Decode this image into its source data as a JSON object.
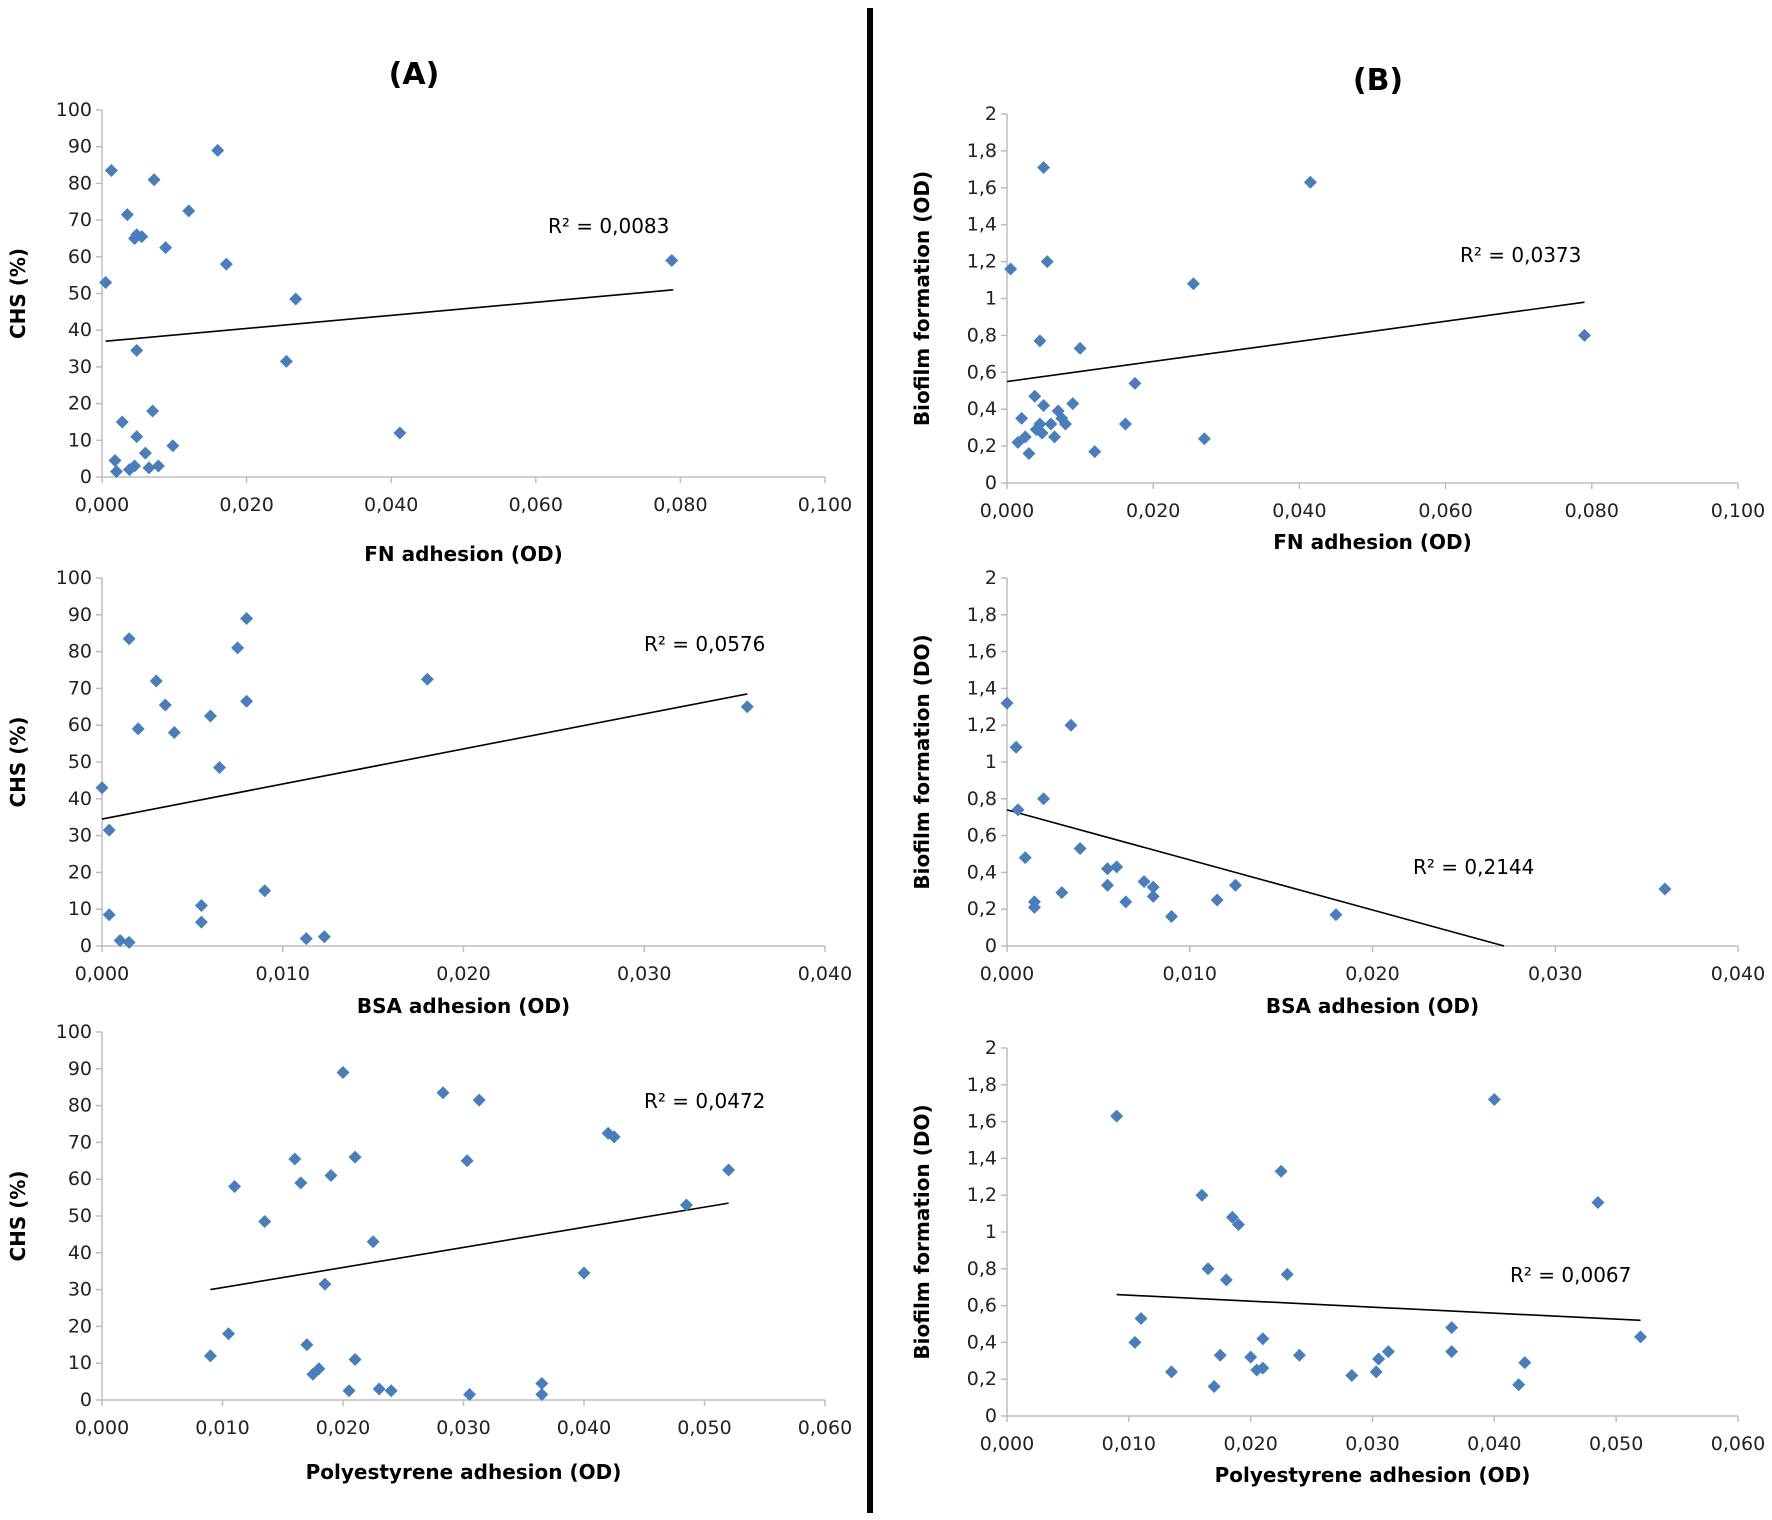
{
  "panel_labels": {
    "a": "(A)",
    "b": "(B)"
  },
  "colors": {
    "point": "#4a7ebb",
    "trendline": "#000000",
    "axis": "#bdbdbd"
  },
  "chart_data": [
    {
      "id": "a1",
      "type": "scatter",
      "xlabel": "FN adhesion (OD)",
      "ylabel": "CHS (%)",
      "xlim": [
        0,
        0.1
      ],
      "ylim": [
        0,
        100
      ],
      "xticks": [
        "0,000",
        "0,020",
        "0,040",
        "0,060",
        "0,080",
        "0,100"
      ],
      "yticks": [
        "0",
        "10",
        "20",
        "30",
        "40",
        "50",
        "60",
        "70",
        "80",
        "90",
        "100"
      ],
      "annotation": "R² = 0,0083",
      "trendline": {
        "x": [
          0.0005,
          0.079
        ],
        "y": [
          37,
          51
        ]
      },
      "points": [
        [
          0.0005,
          53
        ],
        [
          0.0013,
          83.5
        ],
        [
          0.0018,
          4.5
        ],
        [
          0.002,
          1.5
        ],
        [
          0.0028,
          15
        ],
        [
          0.0035,
          71.5
        ],
        [
          0.0038,
          2
        ],
        [
          0.0045,
          3
        ],
        [
          0.0045,
          65
        ],
        [
          0.0048,
          66
        ],
        [
          0.0048,
          34.5
        ],
        [
          0.0048,
          11
        ],
        [
          0.0055,
          65.5
        ],
        [
          0.006,
          6.5
        ],
        [
          0.0065,
          2.5
        ],
        [
          0.007,
          18
        ],
        [
          0.0072,
          81
        ],
        [
          0.0078,
          3
        ],
        [
          0.0088,
          62.5
        ],
        [
          0.0098,
          8.5
        ],
        [
          0.012,
          72.5
        ],
        [
          0.016,
          89
        ],
        [
          0.0172,
          58
        ],
        [
          0.0255,
          31.5
        ],
        [
          0.0268,
          48.5
        ],
        [
          0.0412,
          12
        ],
        [
          0.0788,
          59
        ]
      ]
    },
    {
      "id": "a2",
      "type": "scatter",
      "xlabel": "BSA adhesion (OD)",
      "ylabel": "CHS (%)",
      "xlim": [
        0,
        0.04
      ],
      "ylim": [
        0,
        100
      ],
      "xticks": [
        "0,000",
        "0,010",
        "0,020",
        "0,030",
        "0,040"
      ],
      "yticks": [
        "0",
        "10",
        "20",
        "30",
        "40",
        "50",
        "60",
        "70",
        "80",
        "90",
        "100"
      ],
      "annotation": "R² = 0,0576",
      "trendline": {
        "x": [
          0,
          0.0357
        ],
        "y": [
          34.5,
          68.5
        ]
      },
      "points": [
        [
          0,
          43
        ],
        [
          0.0004,
          31.5
        ],
        [
          0.0004,
          8.5
        ],
        [
          0.001,
          1.5
        ],
        [
          0.0015,
          83.5
        ],
        [
          0.0015,
          1
        ],
        [
          0.002,
          59
        ],
        [
          0.003,
          72
        ],
        [
          0.0035,
          65.5
        ],
        [
          0.004,
          58
        ],
        [
          0.0055,
          11
        ],
        [
          0.0055,
          6.5
        ],
        [
          0.006,
          62.5
        ],
        [
          0.0065,
          48.5
        ],
        [
          0.0075,
          81
        ],
        [
          0.008,
          89
        ],
        [
          0.008,
          66.5
        ],
        [
          0.009,
          15
        ],
        [
          0.0113,
          2
        ],
        [
          0.0123,
          2.5
        ],
        [
          0.018,
          72.5
        ],
        [
          0.0357,
          65
        ]
      ]
    },
    {
      "id": "a3",
      "type": "scatter",
      "xlabel": "Polyestyrene adhesion (OD)",
      "ylabel": "CHS (%)",
      "xlim": [
        0,
        0.06
      ],
      "ylim": [
        0,
        100
      ],
      "xticks": [
        "0,000",
        "0,010",
        "0,020",
        "0,030",
        "0,040",
        "0,050",
        "0,060"
      ],
      "yticks": [
        "0",
        "10",
        "20",
        "30",
        "40",
        "50",
        "60",
        "70",
        "80",
        "90",
        "100"
      ],
      "annotation": "R² = 0,0472",
      "trendline": {
        "x": [
          0.009,
          0.052
        ],
        "y": [
          30,
          53.5
        ]
      },
      "points": [
        [
          0.009,
          12
        ],
        [
          0.0105,
          18
        ],
        [
          0.011,
          58
        ],
        [
          0.0135,
          48.5
        ],
        [
          0.016,
          65.5
        ],
        [
          0.0165,
          59
        ],
        [
          0.017,
          15
        ],
        [
          0.0175,
          7
        ],
        [
          0.018,
          8.5
        ],
        [
          0.0185,
          31.5
        ],
        [
          0.019,
          61
        ],
        [
          0.02,
          89
        ],
        [
          0.0205,
          2.5
        ],
        [
          0.021,
          66
        ],
        [
          0.021,
          11
        ],
        [
          0.0225,
          43
        ],
        [
          0.023,
          3
        ],
        [
          0.024,
          2.5
        ],
        [
          0.0283,
          83.5
        ],
        [
          0.0303,
          65
        ],
        [
          0.0305,
          1.5
        ],
        [
          0.0313,
          81.5
        ],
        [
          0.0365,
          4.5
        ],
        [
          0.0365,
          1.5
        ],
        [
          0.04,
          34.5
        ],
        [
          0.042,
          72.5
        ],
        [
          0.0425,
          71.5
        ],
        [
          0.0485,
          53
        ],
        [
          0.052,
          62.5
        ]
      ]
    },
    {
      "id": "b1",
      "type": "scatter",
      "xlabel": "FN adhesion (OD)",
      "ylabel": "Biofilm formation (OD)",
      "xlim": [
        0,
        0.1
      ],
      "ylim": [
        0,
        2
      ],
      "xticks": [
        "0,000",
        "0,020",
        "0,040",
        "0,060",
        "0,080",
        "0,100"
      ],
      "yticks": [
        "0",
        "0,2",
        "0,4",
        "0,6",
        "0,8",
        "1",
        "1,2",
        "1,4",
        "1,6",
        "1,8",
        "2"
      ],
      "annotation": "R² = 0,0373",
      "trendline": {
        "x": [
          0,
          0.079
        ],
        "y": [
          0.55,
          0.98
        ]
      },
      "points": [
        [
          0.0005,
          1.16
        ],
        [
          0.0015,
          0.22
        ],
        [
          0.002,
          0.35
        ],
        [
          0.0025,
          0.25
        ],
        [
          0.003,
          0.16
        ],
        [
          0.0038,
          0.47
        ],
        [
          0.004,
          0.29
        ],
        [
          0.0045,
          0.32
        ],
        [
          0.0045,
          0.77
        ],
        [
          0.0048,
          0.27
        ],
        [
          0.005,
          0.42
        ],
        [
          0.005,
          1.71
        ],
        [
          0.0055,
          1.2
        ],
        [
          0.006,
          0.32
        ],
        [
          0.0065,
          0.25
        ],
        [
          0.007,
          0.39
        ],
        [
          0.0075,
          0.35
        ],
        [
          0.008,
          0.32
        ],
        [
          0.009,
          0.43
        ],
        [
          0.01,
          0.73
        ],
        [
          0.012,
          0.17
        ],
        [
          0.0162,
          0.32
        ],
        [
          0.0175,
          0.54
        ],
        [
          0.0255,
          1.08
        ],
        [
          0.027,
          0.24
        ],
        [
          0.0415,
          1.63
        ],
        [
          0.079,
          0.8
        ]
      ]
    },
    {
      "id": "b2",
      "type": "scatter",
      "xlabel": "BSA adhesion (OD)",
      "ylabel": "Biofilm formation (DO)",
      "xlim": [
        0,
        0.04
      ],
      "ylim": [
        0,
        2
      ],
      "xticks": [
        "0,000",
        "0,010",
        "0,020",
        "0,030",
        "0,040"
      ],
      "yticks": [
        "0",
        "0,2",
        "0,4",
        "0,6",
        "0,8",
        "1",
        "1,2",
        "1,4",
        "1,6",
        "1,8",
        "2"
      ],
      "annotation": "R² = 0,2144",
      "trendline": {
        "x": [
          0,
          0.0272
        ],
        "y": [
          0.74,
          0
        ]
      },
      "points": [
        [
          0,
          1.32
        ],
        [
          0.0005,
          1.08
        ],
        [
          0.0006,
          0.74
        ],
        [
          0.001,
          0.48
        ],
        [
          0.0015,
          0.24
        ],
        [
          0.0015,
          0.21
        ],
        [
          0.002,
          0.8
        ],
        [
          0.003,
          0.29
        ],
        [
          0.0035,
          1.2
        ],
        [
          0.004,
          0.53
        ],
        [
          0.0055,
          0.42
        ],
        [
          0.0055,
          0.33
        ],
        [
          0.006,
          0.43
        ],
        [
          0.0065,
          0.24
        ],
        [
          0.0075,
          0.35
        ],
        [
          0.008,
          0.32
        ],
        [
          0.008,
          0.27
        ],
        [
          0.009,
          0.16
        ],
        [
          0.0115,
          0.25
        ],
        [
          0.0125,
          0.33
        ],
        [
          0.018,
          0.17
        ],
        [
          0.036,
          0.31
        ]
      ]
    },
    {
      "id": "b3",
      "type": "scatter",
      "xlabel": "Polyestyrene adhesion (OD)",
      "ylabel": "Biofilm formation (DO)",
      "xlim": [
        0,
        0.06
      ],
      "ylim": [
        0,
        2
      ],
      "xticks": [
        "0,000",
        "0,010",
        "0,020",
        "0,030",
        "0,040",
        "0,050",
        "0,060"
      ],
      "yticks": [
        "0",
        "0,2",
        "0,4",
        "0,6",
        "0,8",
        "1",
        "1,2",
        "1,4",
        "1,6",
        "1,8",
        "2"
      ],
      "annotation": "R² = 0,0067",
      "trendline": {
        "x": [
          0.009,
          0.052
        ],
        "y": [
          0.66,
          0.52
        ]
      },
      "points": [
        [
          0.009,
          1.63
        ],
        [
          0.0105,
          0.4
        ],
        [
          0.011,
          0.53
        ],
        [
          0.0135,
          0.24
        ],
        [
          0.016,
          1.2
        ],
        [
          0.0165,
          0.8
        ],
        [
          0.017,
          0.16
        ],
        [
          0.0175,
          0.33
        ],
        [
          0.018,
          0.74
        ],
        [
          0.0185,
          1.08
        ],
        [
          0.019,
          1.04
        ],
        [
          0.02,
          0.32
        ],
        [
          0.0205,
          0.25
        ],
        [
          0.021,
          0.26
        ],
        [
          0.021,
          0.42
        ],
        [
          0.0225,
          1.33
        ],
        [
          0.023,
          0.77
        ],
        [
          0.024,
          0.33
        ],
        [
          0.0283,
          0.22
        ],
        [
          0.0303,
          0.24
        ],
        [
          0.0305,
          0.31
        ],
        [
          0.0313,
          0.35
        ],
        [
          0.0365,
          0.35
        ],
        [
          0.0365,
          0.48
        ],
        [
          0.04,
          1.72
        ],
        [
          0.042,
          0.17
        ],
        [
          0.0425,
          0.29
        ],
        [
          0.0485,
          1.16
        ],
        [
          0.052,
          0.43
        ]
      ]
    }
  ]
}
